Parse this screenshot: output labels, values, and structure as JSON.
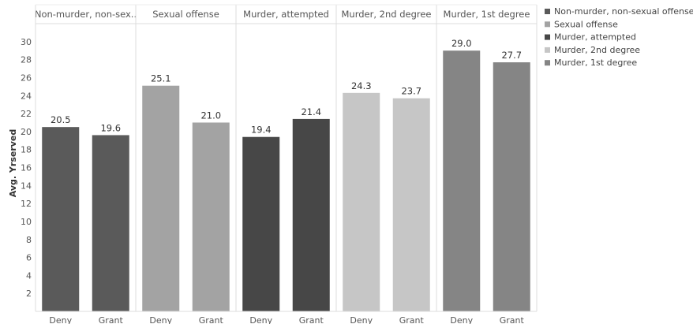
{
  "chart_data": {
    "type": "bar",
    "ylabel": "Avg. Yrserved",
    "ylim": [
      0,
      32
    ],
    "yticks": [
      2,
      4,
      6,
      8,
      10,
      12,
      14,
      16,
      18,
      20,
      22,
      24,
      26,
      28,
      30
    ],
    "grid": false,
    "legend_position": "right",
    "panels": [
      {
        "title": "Non-murder, non-sex..",
        "color": "#5a5a5a",
        "categories": [
          "Deny",
          "Grant"
        ],
        "values": [
          20.5,
          19.6
        ],
        "labels": [
          "20.5",
          "19.6"
        ]
      },
      {
        "title": "Sexual offense",
        "color": "#a3a3a3",
        "categories": [
          "Deny",
          "Grant"
        ],
        "values": [
          25.1,
          21.0
        ],
        "labels": [
          "25.1",
          "21.0"
        ]
      },
      {
        "title": "Murder, attempted",
        "color": "#474747",
        "categories": [
          "Deny",
          "Grant"
        ],
        "values": [
          19.4,
          21.4
        ],
        "labels": [
          "19.4",
          "21.4"
        ]
      },
      {
        "title": "Murder, 2nd degree",
        "color": "#c6c6c6",
        "categories": [
          "Deny",
          "Grant"
        ],
        "values": [
          24.3,
          23.7
        ],
        "labels": [
          "24.3",
          "23.7"
        ]
      },
      {
        "title": "Murder, 1st degree",
        "color": "#858585",
        "categories": [
          "Deny",
          "Grant"
        ],
        "values": [
          29.0,
          27.7
        ],
        "labels": [
          "29.0",
          "27.7"
        ]
      }
    ],
    "legend": [
      {
        "label": "Non-murder, non-sexual offense",
        "color": "#5a5a5a"
      },
      {
        "label": "Sexual offense",
        "color": "#a3a3a3"
      },
      {
        "label": "Murder, attempted",
        "color": "#474747"
      },
      {
        "label": "Murder, 2nd degree",
        "color": "#c6c6c6"
      },
      {
        "label": "Murder, 1st degree",
        "color": "#858585"
      }
    ]
  }
}
